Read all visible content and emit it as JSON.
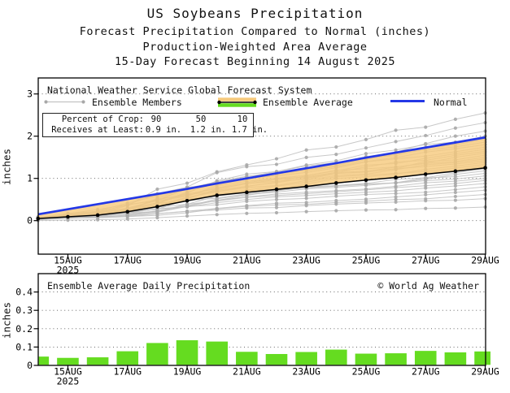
{
  "header": {
    "title": "US Soybeans Precipitation",
    "subtitle1": "Forecast Precipitation Compared to Normal (inches)",
    "subtitle2": "Production-Weighted Area Average",
    "subtitle3": "15-Day Forecast Beginning 14 August 2025"
  },
  "top_chart": {
    "legend": {
      "header": "National Weather Service Global Forecast System",
      "members_label": "Ensemble Members",
      "average_label": "Ensemble Average",
      "normal_label": "Normal"
    },
    "crop_table": {
      "label1": "Percent of Crop:",
      "label2": "Receives at Least:",
      "p90": "90",
      "p50": "50",
      "p10": "10",
      "v90": "0.9 in.",
      "v50": "1.2 in.",
      "v10": "1.7 in."
    },
    "ylabel": "inches",
    "year_label": "2025"
  },
  "bottom_chart": {
    "title": "Ensemble Average Daily Precipitation",
    "copyright": "© World Ag Weather",
    "ylabel": "inches",
    "year_label": "2025"
  },
  "colors": {
    "normal_line": "#2438e6",
    "average_line": "#000000",
    "member_line": "#c2c2c2",
    "member_dot": "#a8a8a8",
    "band_orange": "#f6c97c",
    "band_green_legend": "#65dc20",
    "bar_green": "#65dc20",
    "axis": "#000000",
    "gridline": "#555555"
  },
  "chart_data": [
    {
      "type": "line",
      "title": "Forecast Precipitation Compared to Normal (inches), cumulative",
      "x": [
        "14AUG",
        "15AUG",
        "16AUG",
        "17AUG",
        "18AUG",
        "19AUG",
        "20AUG",
        "21AUG",
        "22AUG",
        "23AUG",
        "24AUG",
        "25AUG",
        "26AUG",
        "27AUG",
        "28AUG",
        "29AUG"
      ],
      "x_ticklabels": [
        "15AUG",
        "17AUG",
        "19AUG",
        "21AUG",
        "23AUG",
        "25AUG",
        "27AUG",
        "29AUG"
      ],
      "x_tick_days": [
        1,
        3,
        5,
        7,
        9,
        11,
        13,
        15
      ],
      "year_label": "2025",
      "ylabel": "inches",
      "yticks": [
        0,
        1,
        2,
        3
      ],
      "ylim": [
        -0.78,
        3.38
      ],
      "grid": "dotted horizontal",
      "legend_position": "top-left inside",
      "series": [
        {
          "name": "Ensemble Average",
          "values": [
            0.05,
            0.09,
            0.13,
            0.21,
            0.33,
            0.47,
            0.6,
            0.67,
            0.74,
            0.81,
            0.89,
            0.96,
            1.02,
            1.1,
            1.17,
            1.25
          ]
        },
        {
          "name": "Normal",
          "values": [
            0.15,
            0.27,
            0.39,
            0.51,
            0.63,
            0.75,
            0.88,
            1.0,
            1.12,
            1.24,
            1.36,
            1.49,
            1.61,
            1.73,
            1.85,
            1.97
          ]
        }
      ],
      "band": {
        "between": [
          "Ensemble Average",
          "Normal"
        ],
        "meaning": "below-normal deficit shading"
      },
      "ensemble_members": {
        "count": 30,
        "final_values": [
          2.55,
          2.32,
          2.12,
          2.0,
          1.92,
          1.86,
          1.8,
          1.74,
          1.69,
          1.64,
          1.6,
          1.55,
          1.5,
          1.46,
          1.42,
          1.38,
          1.33,
          1.28,
          1.23,
          1.18,
          1.12,
          1.06,
          1.0,
          0.95,
          0.88,
          0.8,
          0.72,
          0.62,
          0.52,
          0.32
        ]
      },
      "crop_table": {
        "percent_of_crop": [
          90,
          50,
          10
        ],
        "receives_at_least_in": [
          0.9,
          1.2,
          1.7
        ]
      }
    },
    {
      "type": "bar",
      "title": "Ensemble Average Daily Precipitation",
      "categories": [
        "14AUG",
        "15AUG",
        "16AUG",
        "17AUG",
        "18AUG",
        "19AUG",
        "20AUG",
        "21AUG",
        "22AUG",
        "23AUG",
        "24AUG",
        "25AUG",
        "26AUG",
        "27AUG",
        "28AUG",
        "29AUG"
      ],
      "values": [
        0.048,
        0.041,
        0.044,
        0.077,
        0.122,
        0.137,
        0.13,
        0.074,
        0.062,
        0.073,
        0.086,
        0.064,
        0.066,
        0.079,
        0.071,
        0.076
      ],
      "x_ticklabels": [
        "15AUG",
        "17AUG",
        "19AUG",
        "21AUG",
        "23AUG",
        "25AUG",
        "27AUG",
        "29AUG"
      ],
      "x_tick_days": [
        1,
        3,
        5,
        7,
        9,
        11,
        13,
        15
      ],
      "year_label": "2025",
      "ylabel": "inches",
      "yticks": [
        0,
        0.1,
        0.2,
        0.3,
        0.4
      ],
      "ylim": [
        0,
        0.5
      ],
      "grid": "dotted horizontal"
    }
  ]
}
